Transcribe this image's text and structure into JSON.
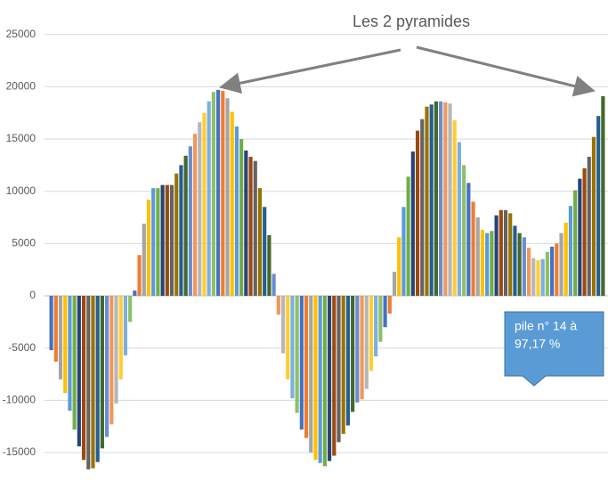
{
  "chart_data": {
    "type": "bar",
    "title": "Les 2 pyramides",
    "callout": [
      "pile n° 14 à",
      "97,17 %"
    ],
    "values": [
      -5200,
      -6300,
      -8000,
      -9300,
      -11000,
      -12800,
      -14400,
      -15700,
      -16600,
      -16500,
      -15900,
      -14600,
      -13500,
      -12300,
      -10300,
      -8000,
      -5700,
      -2500,
      500,
      3900,
      6900,
      9200,
      10300,
      10300,
      10600,
      10600,
      10600,
      11700,
      12500,
      13400,
      14300,
      15500,
      16600,
      17500,
      18600,
      19500,
      19700,
      19600,
      18900,
      17600,
      16200,
      15000,
      13900,
      13300,
      12900,
      10300,
      8500,
      5800,
      2100,
      -1800,
      -5500,
      -8000,
      -9800,
      -11200,
      -12800,
      -13600,
      -15000,
      -15700,
      -16000,
      -16300,
      -15800,
      -15300,
      -14000,
      -13200,
      -12400,
      -11100,
      -10200,
      -9900,
      -8900,
      -7200,
      -5800,
      -4400,
      -3000,
      -1700,
      2300,
      5600,
      8500,
      11400,
      13800,
      15800,
      16900,
      18100,
      18300,
      18600,
      18600,
      18500,
      18400,
      16800,
      14700,
      12500,
      10800,
      9000,
      7500,
      6300,
      6000,
      6200,
      7700,
      8200,
      8200,
      7900,
      6700,
      6000,
      5600,
      4600,
      3600,
      3400,
      3500,
      4200,
      4700,
      5000,
      6000,
      7000,
      8600,
      10100,
      11200,
      12200,
      13300,
      15200,
      17200,
      19100
    ],
    "colors": [
      "#4472c4",
      "#ed7d31",
      "#a5a5a5",
      "#ffc000",
      "#5b9bd5",
      "#70ad47",
      "#264478",
      "#9e480e",
      "#636363",
      "#997300",
      "#255e91",
      "#43682b",
      "#698ed0",
      "#f1975a",
      "#b7b7b7",
      "#ffcd33",
      "#7cafdd",
      "#8cc168"
    ],
    "ylim": [
      -17000,
      25000
    ],
    "yticks": [
      -15000,
      -10000,
      -5000,
      0,
      5000,
      10000,
      15000,
      20000,
      25000
    ],
    "grid": true
  }
}
